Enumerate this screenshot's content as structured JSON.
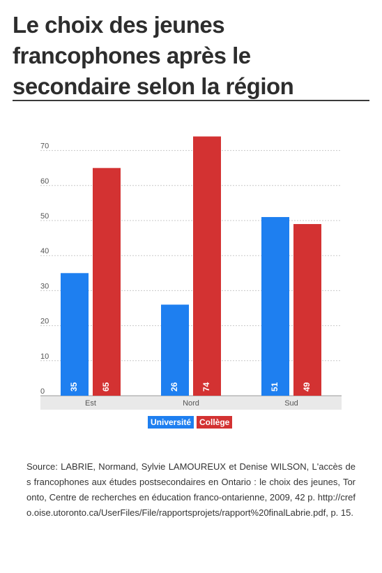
{
  "title": "Le choix des jeunes francophones après le secondaire selon la région",
  "chart_data": {
    "type": "bar",
    "title": "Le choix des jeunes francophones après le secondaire selon la région",
    "categories": [
      "Est",
      "Nord",
      "Sud"
    ],
    "series": [
      {
        "name": "Université",
        "values": [
          35,
          26,
          51
        ],
        "color": "#1e7ff0"
      },
      {
        "name": "Collège",
        "values": [
          65,
          74,
          49
        ],
        "color": "#d33232"
      }
    ],
    "y_ticks": [
      0,
      10,
      20,
      30,
      40,
      50,
      60,
      70
    ],
    "ylim": [
      0,
      75
    ],
    "grid": true,
    "legend_position": "bottom-center",
    "data_labels": true
  },
  "source": "Source: LABRIE, Normand, Sylvie LAMOUREUX et Denise WILSON, L'accès des francophones aux études postsecondaires en Ontario : le choix des jeunes, Toronto, Centre de recherches en éducation franco-ontarienne, 2009, 42 p. http://crefo.oise.utoronto.ca/UserFiles/File/rapportsprojets/rapport%20finalLabrie.pdf, p. 15."
}
